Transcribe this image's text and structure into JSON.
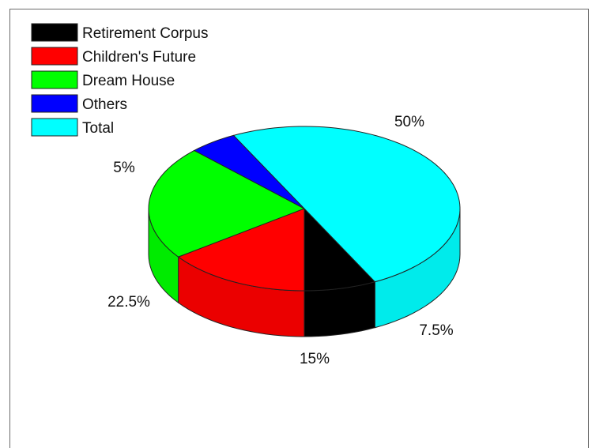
{
  "chart_data": {
    "type": "pie",
    "style": "3d",
    "title": "",
    "legend_position": "top-left",
    "slices": [
      {
        "name": "Retirement Corpus",
        "value": 7.5,
        "label": "7.5%",
        "color": "#000000"
      },
      {
        "name": "Children's Future",
        "value": 15,
        "label": "15%",
        "color": "#ff0000"
      },
      {
        "name": "Dream House",
        "value": 22.5,
        "label": "22.5%",
        "color": "#00ff00"
      },
      {
        "name": "Others",
        "value": 5,
        "label": "5%",
        "color": "#0000ff"
      },
      {
        "name": "Total",
        "value": 50,
        "label": "50%",
        "color": "#00ffff"
      }
    ]
  }
}
